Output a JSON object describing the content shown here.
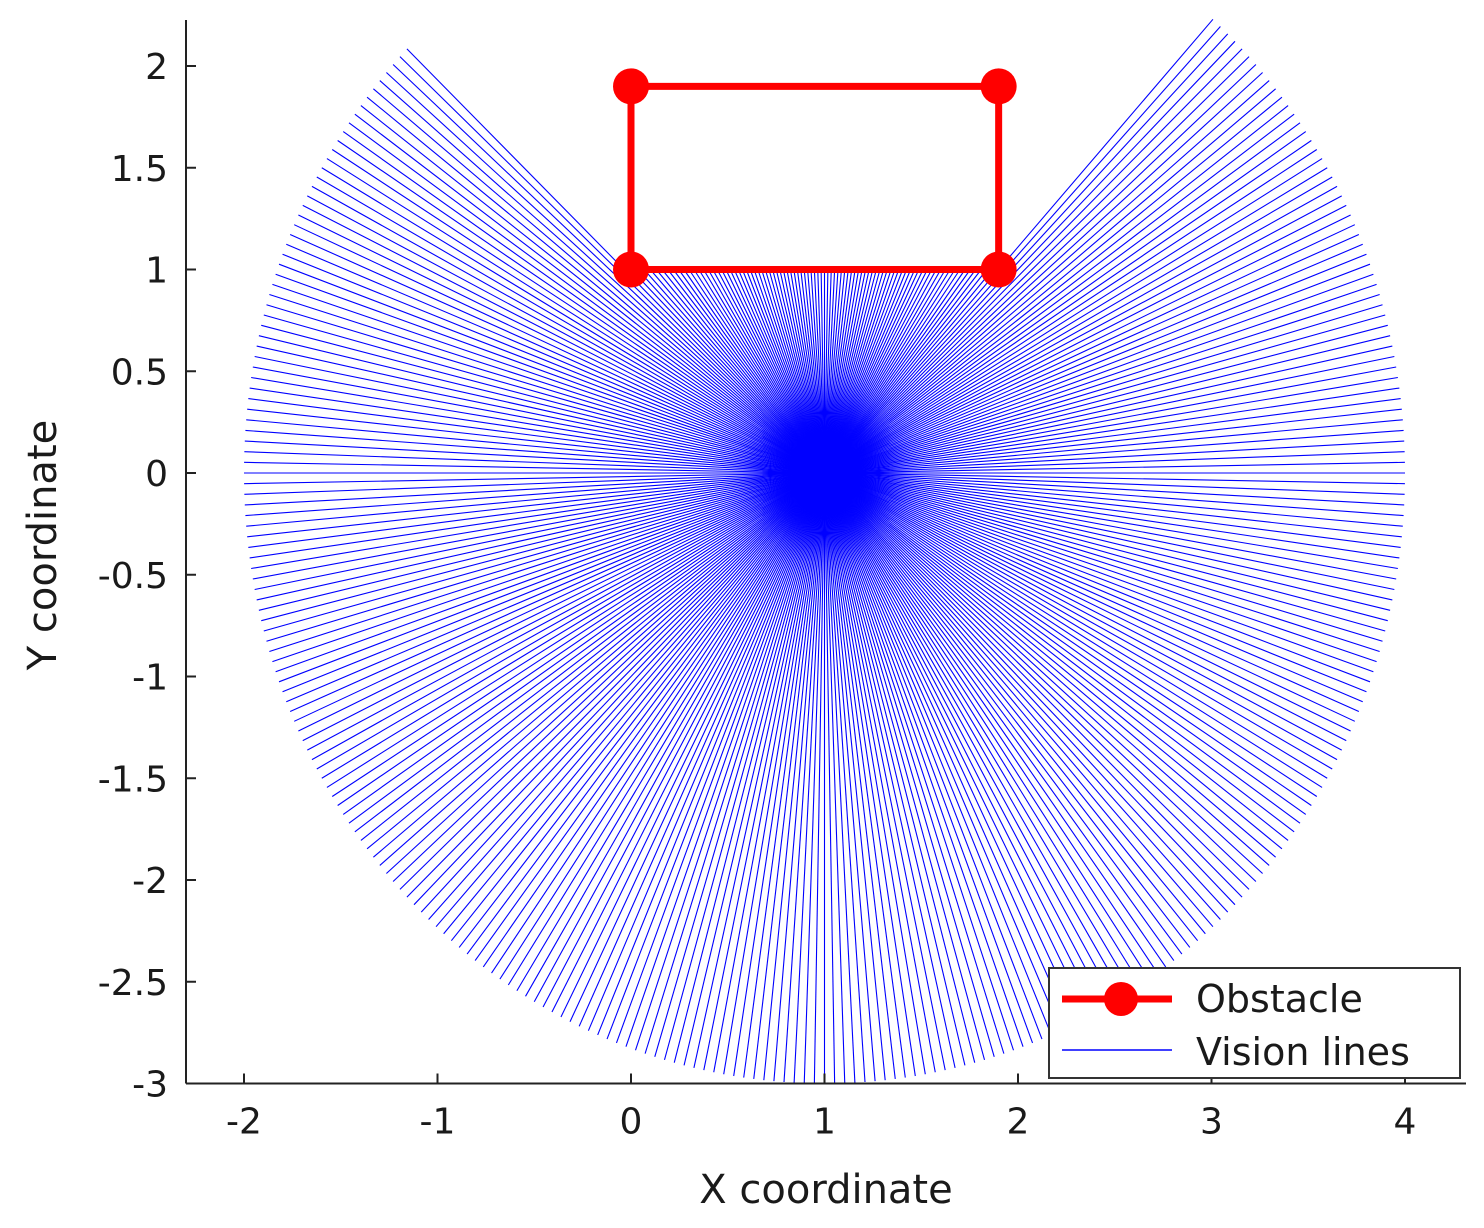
{
  "chart_data": {
    "type": "line",
    "xlabel": "X coordinate",
    "ylabel": "Y coordinate",
    "xlim": [
      -2.3,
      4.3
    ],
    "ylim": [
      -3,
      2.25
    ],
    "x_ticks": [
      -2,
      -1,
      0,
      1,
      2,
      3,
      4
    ],
    "x_tick_labels": [
      "-2",
      "-1",
      "0",
      "1",
      "2",
      "3",
      "4"
    ],
    "y_ticks": [
      2,
      1.5,
      1,
      0.5,
      0,
      -0.5,
      -1,
      -1.5,
      -2,
      -2.5,
      -3
    ],
    "y_tick_labels": [
      "2",
      "1.5",
      "1",
      "0.5",
      "0",
      "-0.5",
      "-1",
      "-1.5",
      "-2",
      "-2.5",
      "-3"
    ],
    "grid": false,
    "legend_position": "bottom-right",
    "series": [
      {
        "name": "Obstacle",
        "style": "line-with-circle-markers",
        "color": "#ff0000",
        "points": [
          [
            0,
            1
          ],
          [
            1.9,
            1
          ],
          [
            1.9,
            1.9
          ],
          [
            0,
            1.9
          ],
          [
            0,
            1
          ]
        ]
      },
      {
        "name": "Vision lines",
        "style": "rays",
        "color": "#0000ff",
        "origin": [
          1,
          0
        ],
        "range": 3,
        "ray_count": 360,
        "angle_span_deg": [
          0,
          360
        ],
        "blocked_by": "Obstacle"
      }
    ]
  }
}
